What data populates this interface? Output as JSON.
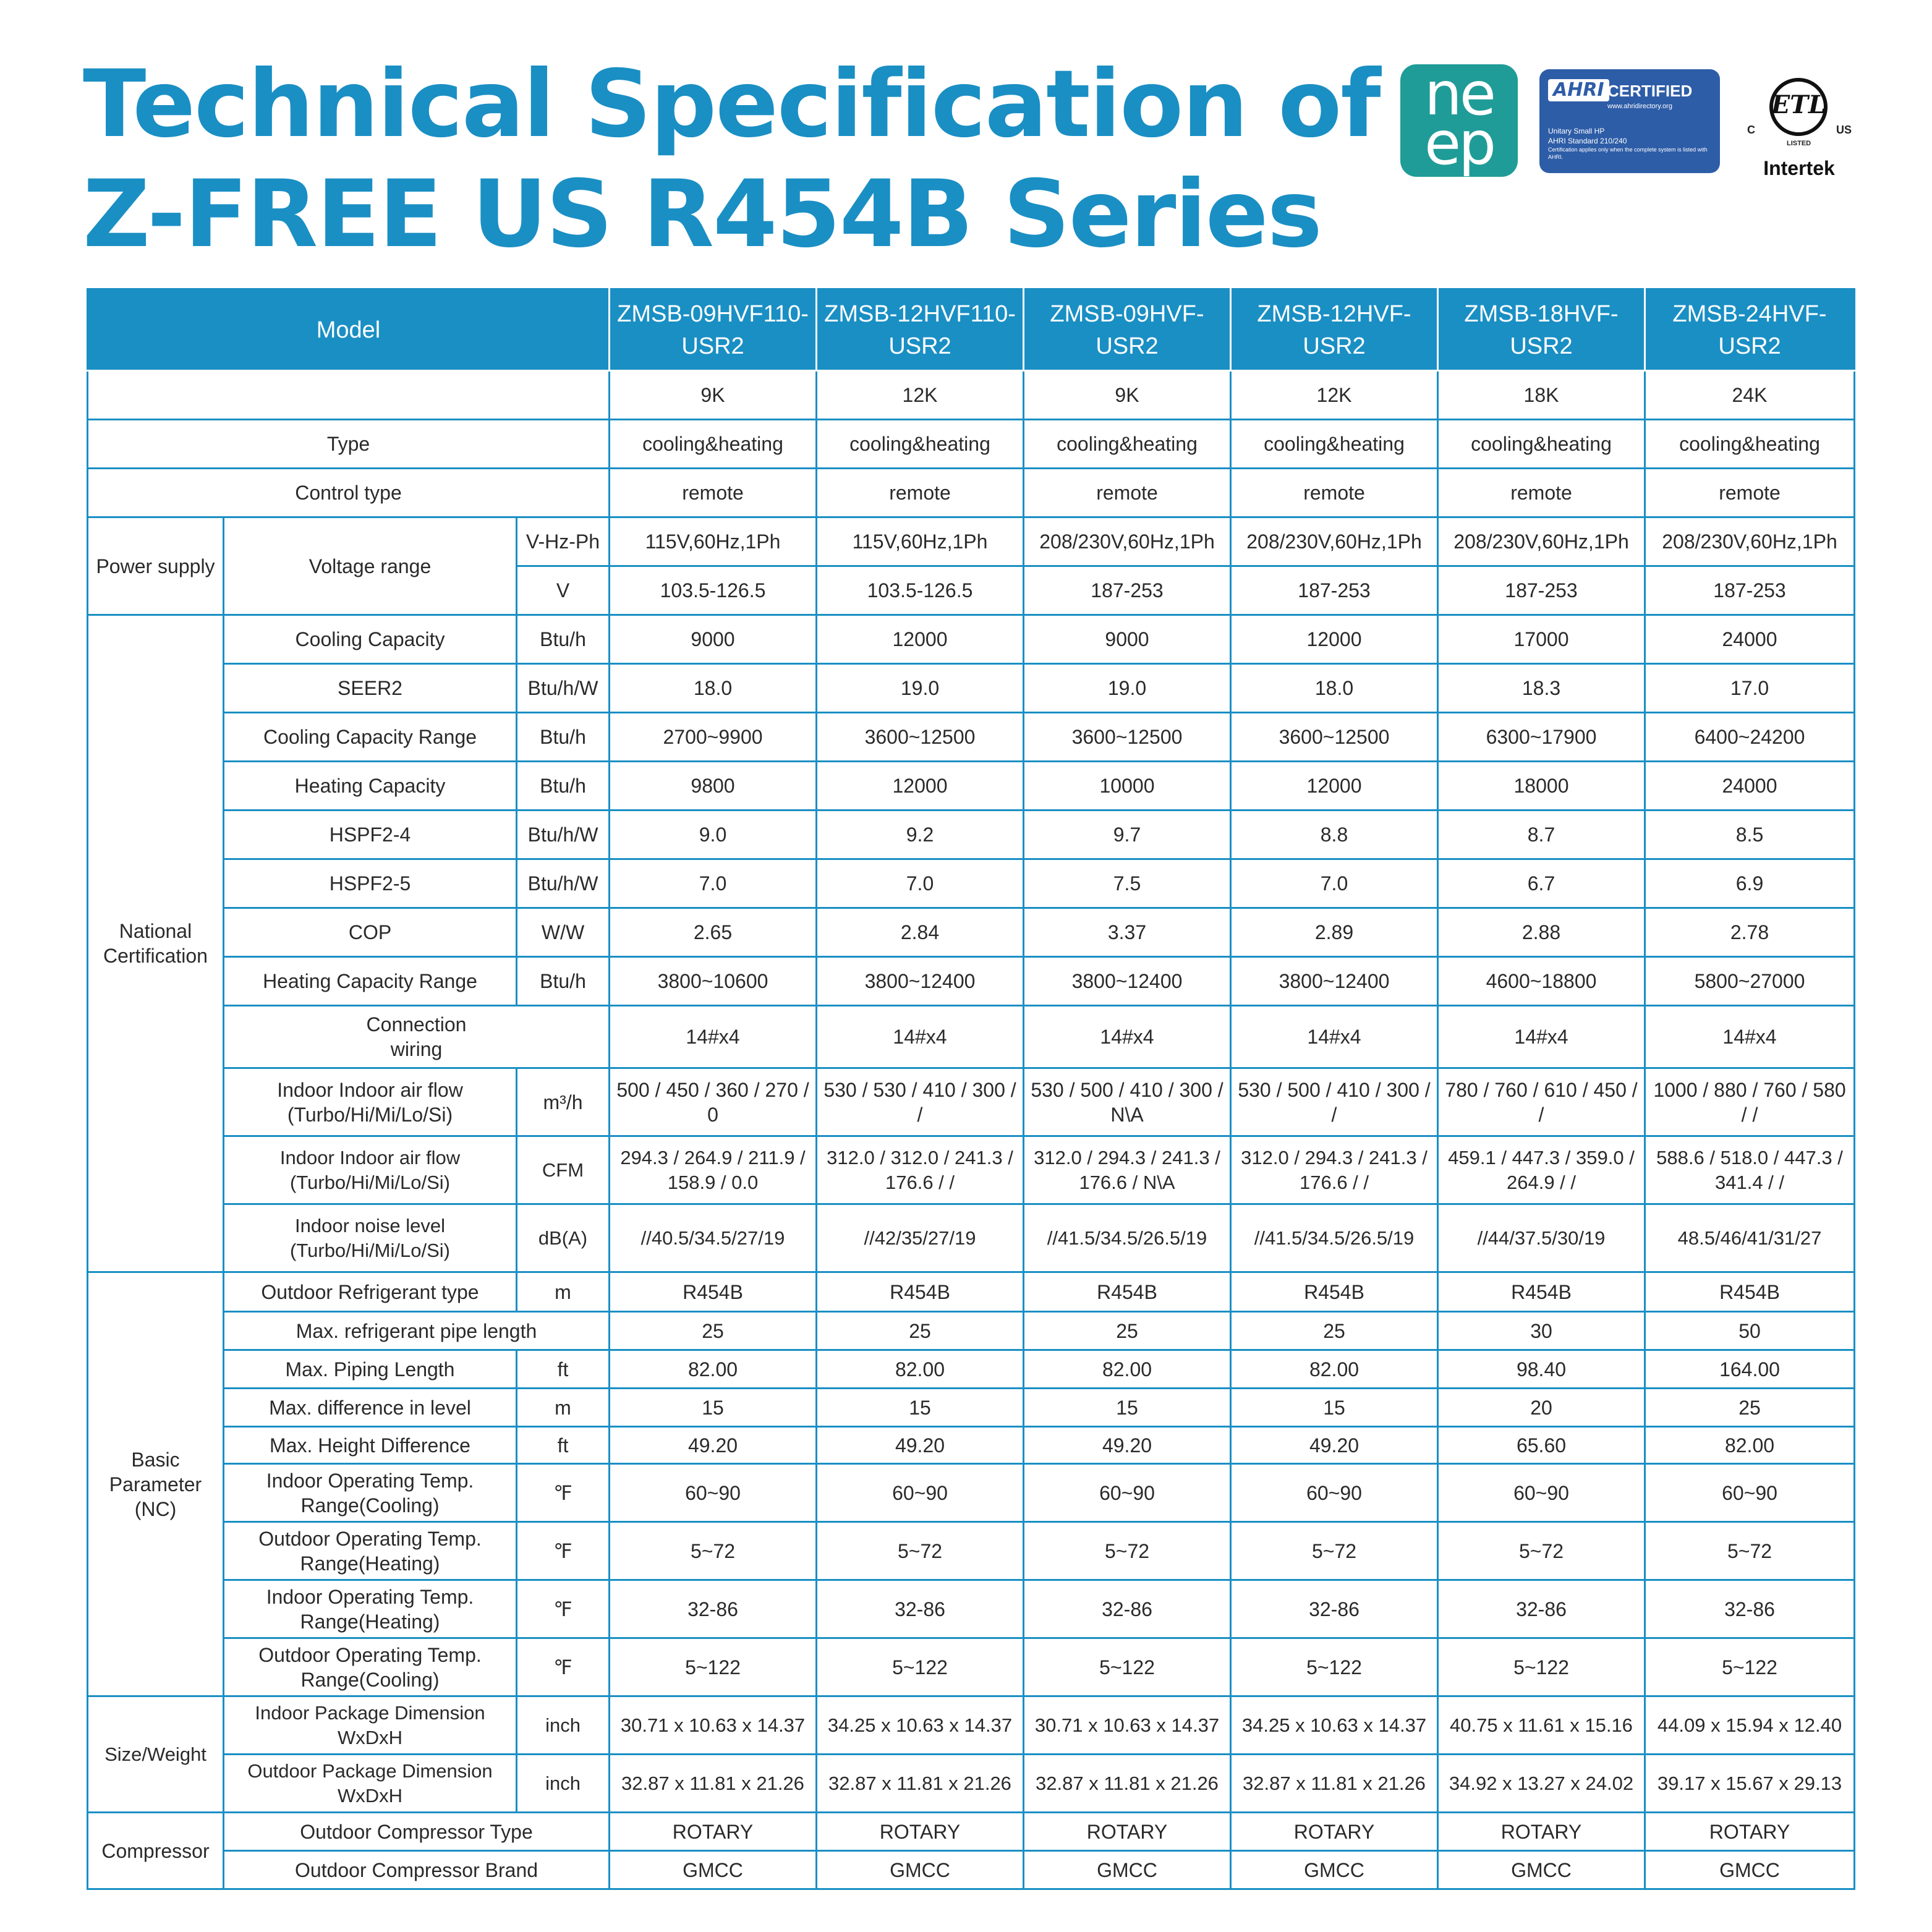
{
  "title": {
    "line1": "Technical Specification of",
    "line2": "Z-FREE US R454B Series"
  },
  "logos": {
    "neep": {
      "line1": "ne",
      "line2": "ep",
      "color": "#1f9c97"
    },
    "ahri": {
      "brand": "AHRI",
      "certified": "CERTIFIED",
      "website": "www.ahridirectory.org",
      "line1": "Unitary Small HP",
      "line2": "AHRI Standard 210/240",
      "line3": "Certification applies only when the complete system is listed with AHRI.",
      "color": "#2e5da8"
    },
    "etl": {
      "mark": "ETL",
      "c": "C",
      "us": "US",
      "listed": "LISTED",
      "company": "Intertek"
    }
  },
  "colors": {
    "accent": "#1a8fc4"
  },
  "table": {
    "header_label": "Model",
    "models": [
      "ZMSB-09HVF110-USR2",
      "ZMSB-12HVF110-USR2",
      "ZMSB-09HVF-USR2",
      "ZMSB-12HVF-USR2",
      "ZMSB-18HVF-USR2",
      "ZMSB-24HVF-USR2"
    ],
    "capacity": [
      "9K",
      "12K",
      "9K",
      "12K",
      "18K",
      "24K"
    ],
    "groups": {
      "power": "Power supply",
      "voltage": "Voltage range",
      "national": "National Certification",
      "basic": "Basic Parameter (NC)",
      "size": "Size/Weight",
      "compressor": "Compressor"
    },
    "rows": {
      "type": {
        "label": "Type",
        "values": [
          "cooling&heating",
          "cooling&heating",
          "cooling&heating",
          "cooling&heating",
          "cooling&heating",
          "cooling&heating"
        ]
      },
      "control": {
        "label": "Control type",
        "values": [
          "remote",
          "remote",
          "remote",
          "remote",
          "remote",
          "remote"
        ]
      },
      "vhzph": {
        "unit": "V-Hz-Ph",
        "values": [
          "115V,60Hz,1Ph",
          "115V,60Hz,1Ph",
          "208/230V,60Hz,1Ph",
          "208/230V,60Hz,1Ph",
          "208/230V,60Hz,1Ph",
          "208/230V,60Hz,1Ph"
        ]
      },
      "v": {
        "unit": "V",
        "values": [
          "103.5-126.5",
          "103.5-126.5",
          "187-253",
          "187-253",
          "187-253",
          "187-253"
        ]
      },
      "cool_cap": {
        "label": "Cooling Capacity",
        "unit": "Btu/h",
        "values": [
          "9000",
          "12000",
          "9000",
          "12000",
          "17000",
          "24000"
        ]
      },
      "seer2": {
        "label": "SEER2",
        "unit": "Btu/h/W",
        "values": [
          "18.0",
          "19.0",
          "19.0",
          "18.0",
          "18.3",
          "17.0"
        ]
      },
      "cool_range": {
        "label": "Cooling Capacity Range",
        "unit": "Btu/h",
        "values": [
          "2700~9900",
          "3600~12500",
          "3600~12500",
          "3600~12500",
          "6300~17900",
          "6400~24200"
        ]
      },
      "heat_cap": {
        "label": "Heating Capacity",
        "unit": "Btu/h",
        "values": [
          "9800",
          "12000",
          "10000",
          "12000",
          "18000",
          "24000"
        ]
      },
      "hspf4": {
        "label": "HSPF2-4",
        "unit": "Btu/h/W",
        "values": [
          "9.0",
          "9.2",
          "9.7",
          "8.8",
          "8.7",
          "8.5"
        ]
      },
      "hspf5": {
        "label": "HSPF2-5",
        "unit": "Btu/h/W",
        "values": [
          "7.0",
          "7.0",
          "7.5",
          "7.0",
          "6.7",
          "6.9"
        ]
      },
      "cop": {
        "label": "COP",
        "unit": "W/W",
        "values": [
          "2.65",
          "2.84",
          "3.37",
          "2.89",
          "2.88",
          "2.78"
        ]
      },
      "heat_range": {
        "label": "Heating Capacity Range",
        "unit": "Btu/h",
        "values": [
          "3800~10600",
          "3800~12400",
          "3800~12400",
          "3800~12400",
          "4600~18800",
          "5800~27000"
        ]
      },
      "wiring": {
        "label": "Connection wiring",
        "values": [
          "14#x4",
          "14#x4",
          "14#x4",
          "14#x4",
          "14#x4",
          "14#x4"
        ]
      },
      "airflow_m3": {
        "label": "Indoor Indoor air flow (Turbo/Hi/Mi/Lo/Si)",
        "unit": "m³/h",
        "values": [
          "500 / 450 / 360 / 270 / 0",
          "530 / 530 / 410 / 300 / /",
          "530 / 500 / 410 / 300 / N\\A",
          "530 / 500 / 410 / 300 / /",
          "780 / 760 / 610 / 450 / /",
          "1000 / 880 / 760 / 580 / /"
        ]
      },
      "airflow_cfm": {
        "label": "Indoor Indoor air flow (Turbo/Hi/Mi/Lo/Si)",
        "unit": "CFM",
        "values": [
          "294.3 / 264.9 / 211.9 / 158.9 / 0.0",
          "312.0 / 312.0 / 241.3 / 176.6 / /",
          "312.0 / 294.3 / 241.3 / 176.6 / N\\A",
          "312.0 / 294.3 / 241.3 / 176.6 / /",
          "459.1 / 447.3 / 359.0 / 264.9 / /",
          "588.6 / 518.0 / 447.3 / 341.4 / /"
        ]
      },
      "noise": {
        "label": "Indoor noise level (Turbo/Hi/Mi/Lo/Si)",
        "unit": "dB(A)",
        "values": [
          "//40.5/34.5/27/19",
          "//42/35/27/19",
          "//41.5/34.5/26.5/19",
          "//41.5/34.5/26.5/19",
          "//44/37.5/30/19",
          "48.5/46/41/31/27"
        ]
      },
      "refrigerant": {
        "label": "Outdoor Refrigerant type",
        "unit": "m",
        "values": [
          "R454B",
          "R454B",
          "R454B",
          "R454B",
          "R454B",
          "R454B"
        ]
      },
      "pipe_len": {
        "label": "Max. refrigerant pipe length",
        "values": [
          "25",
          "25",
          "25",
          "25",
          "30",
          "50"
        ]
      },
      "piping_ft": {
        "label": "Max. Piping Length",
        "unit": "ft",
        "values": [
          "82.00",
          "82.00",
          "82.00",
          "82.00",
          "98.40",
          "164.00"
        ]
      },
      "diff_level": {
        "label": "Max. difference in level",
        "unit": "m",
        "values": [
          "15",
          "15",
          "15",
          "15",
          "20",
          "25"
        ]
      },
      "height_diff": {
        "label": "Max. Height Difference",
        "unit": "ft",
        "values": [
          "49.20",
          "49.20",
          "49.20",
          "49.20",
          "65.60",
          "82.00"
        ]
      },
      "in_temp_cool": {
        "label": "Indoor Operating Temp. Range(Cooling)",
        "unit": "℉",
        "values": [
          "60~90",
          "60~90",
          "60~90",
          "60~90",
          "60~90",
          "60~90"
        ]
      },
      "out_temp_heat": {
        "label": "Outdoor Operating Temp. Range(Heating)",
        "unit": "℉",
        "values": [
          "5~72",
          "5~72",
          "5~72",
          "5~72",
          "5~72",
          "5~72"
        ]
      },
      "in_temp_heat": {
        "label": "Indoor Operating Temp. Range(Heating)",
        "unit": "℉",
        "values": [
          "32-86",
          "32-86",
          "32-86",
          "32-86",
          "32-86",
          "32-86"
        ]
      },
      "out_temp_cool": {
        "label": "Outdoor Operating Temp. Range(Cooling)",
        "unit": "℉",
        "values": [
          "5~122",
          "5~122",
          "5~122",
          "5~122",
          "5~122",
          "5~122"
        ]
      },
      "in_pkg": {
        "label": "Indoor Package Dimension WxDxH",
        "unit": "inch",
        "values": [
          "30.71 x 10.63 x 14.37",
          "34.25 x 10.63 x 14.37",
          "30.71 x 10.63 x 14.37",
          "34.25 x 10.63 x 14.37",
          "40.75 x 11.61 x 15.16",
          "44.09 x 15.94 x 12.40"
        ]
      },
      "out_pkg": {
        "label": "Outdoor Package Dimension WxDxH",
        "unit": "inch",
        "values": [
          "32.87 x 11.81 x 21.26",
          "32.87 x 11.81 x 21.26",
          "32.87 x 11.81 x 21.26",
          "32.87 x 11.81 x 21.26",
          "34.92 x 13.27 x 24.02",
          "39.17 x 15.67 x 29.13"
        ]
      },
      "comp_type": {
        "label": "Outdoor Compressor Type",
        "values": [
          "ROTARY",
          "ROTARY",
          "ROTARY",
          "ROTARY",
          "ROTARY",
          "ROTARY"
        ]
      },
      "comp_brand": {
        "label": "Outdoor Compressor Brand",
        "values": [
          "GMCC",
          "GMCC",
          "GMCC",
          "GMCC",
          "GMCC",
          "GMCC"
        ]
      }
    }
  }
}
